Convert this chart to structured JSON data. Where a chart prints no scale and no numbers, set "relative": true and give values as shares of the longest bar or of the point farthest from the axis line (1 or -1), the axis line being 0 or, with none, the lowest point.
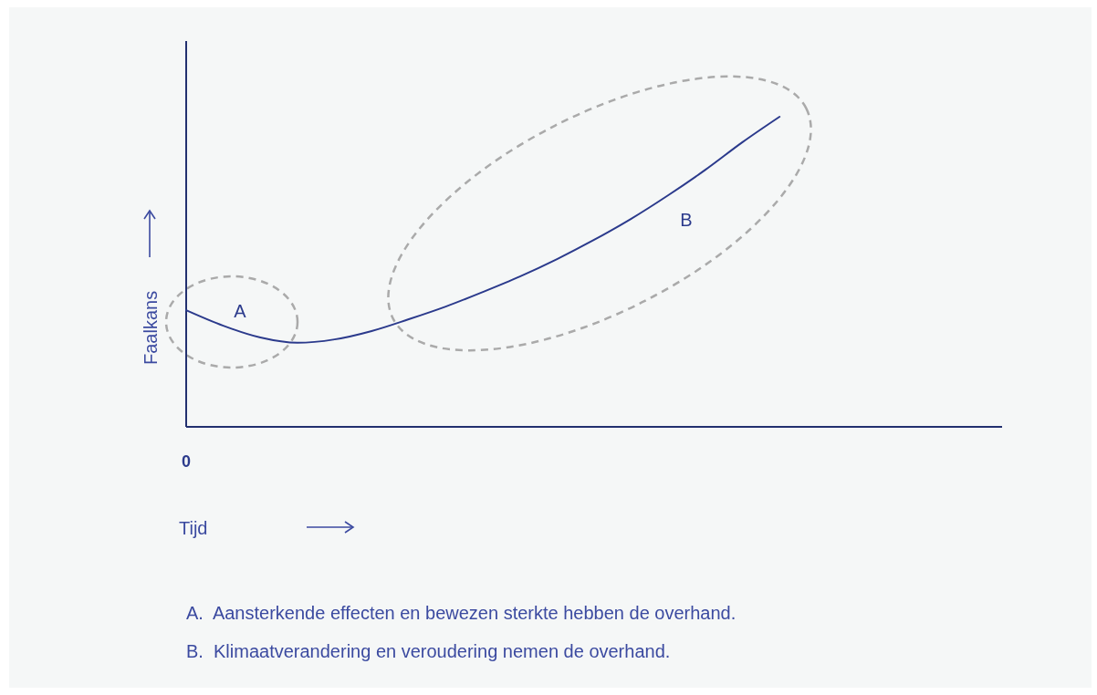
{
  "chart_data": {
    "type": "line",
    "xlabel": "Tijd",
    "ylabel": "Faalkans",
    "relative": true,
    "color": "#2b3a8c",
    "categories": [
      null,
      null,
      null,
      null,
      null,
      null,
      null,
      null,
      null,
      null,
      null,
      null,
      null,
      null,
      null,
      null,
      null,
      null,
      null,
      null,
      null,
      null,
      null
    ],
    "values": [
      0.376,
      0.326,
      0.288,
      0.271,
      0.282,
      0.309,
      0.347,
      0.388,
      0.435,
      0.485,
      0.541,
      0.603,
      0.671,
      0.747,
      0.829,
      0.918,
      1,
      null,
      null,
      null,
      null,
      null,
      null
    ],
    "annotations": [
      "0",
      "A",
      "B",
      "A.  Aansterkende effecten en bewezen sterkte hebben de overhand.",
      "B.  Klimaatverandering en veroudering nemen de overhand."
    ]
  }
}
